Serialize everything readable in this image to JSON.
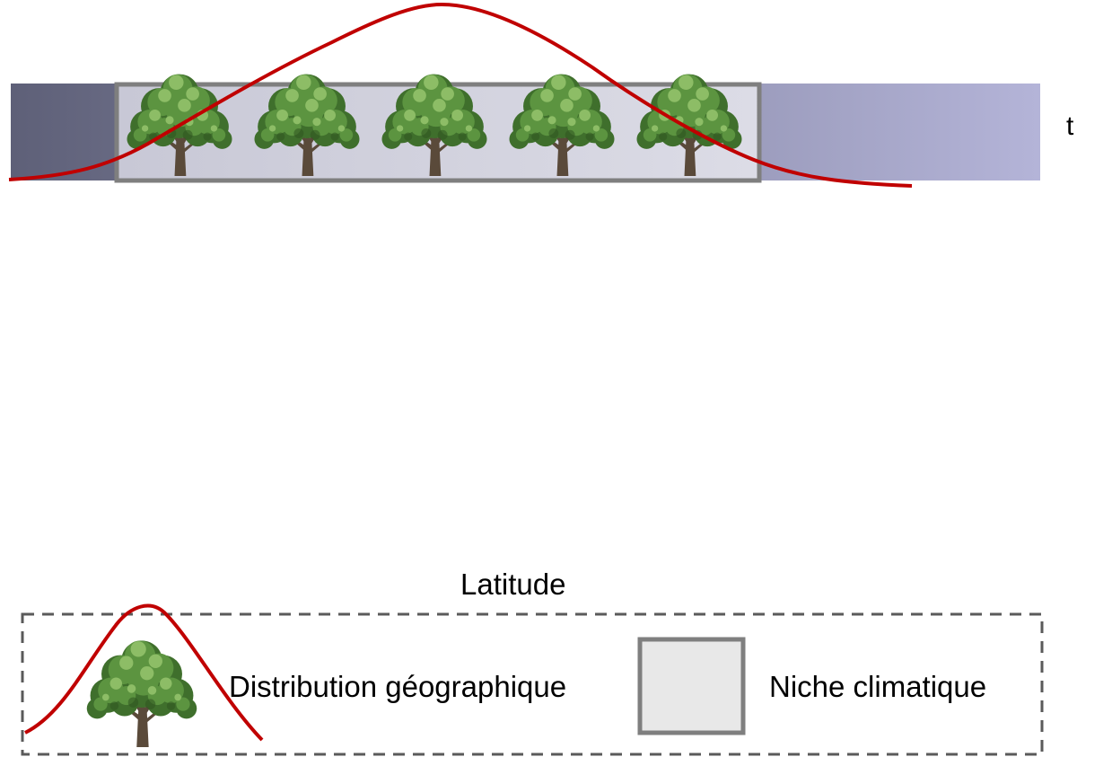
{
  "axis": {
    "time_label": "t",
    "latitude_label": "Latitude"
  },
  "legend": {
    "distribution_label": "Distribution géographique",
    "niche_label": "Niche climatique"
  },
  "colors": {
    "gradient_start": "#5e6078",
    "gradient_end": "#b4b4d8",
    "niche_fill": "#dcdce6",
    "niche_border": "#7f7f7f",
    "distribution_curve": "#c00000",
    "legend_border": "#5a5a5a",
    "legend_niche_fill": "#e8e8e8",
    "foliage_dark": "#3f6f2c",
    "foliage_mid": "#5c9440",
    "foliage_light": "#8dbd66",
    "trunk": "#5a4a3a"
  },
  "trees": {
    "count": 5,
    "icon": "tree-icon"
  }
}
